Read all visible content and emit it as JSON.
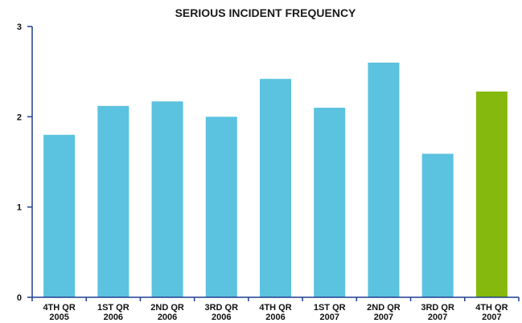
{
  "chart_data": {
    "type": "bar",
    "title": "SERIOUS INCIDENT FREQUENCY",
    "xlabel": "",
    "ylabel": "",
    "ylim": [
      0,
      3
    ],
    "yticks": [
      "0",
      "1",
      "2",
      "3"
    ],
    "grid": false,
    "legend": "none",
    "categories": [
      [
        "4TH QR",
        "2005"
      ],
      [
        "1ST QR",
        "2006"
      ],
      [
        "2ND QR",
        "2006"
      ],
      [
        "3RD QR",
        "2006"
      ],
      [
        "4TH QR",
        "2006"
      ],
      [
        "1ST QR",
        "2007"
      ],
      [
        "2ND QR",
        "2007"
      ],
      [
        "3RD QR",
        "2007"
      ],
      [
        "4TH QR",
        "2007"
      ]
    ],
    "values": [
      1.8,
      2.12,
      2.17,
      2.0,
      2.42,
      2.1,
      2.6,
      1.59,
      2.28
    ],
    "colors": {
      "bar": "#5bc2df",
      "highlight": "#85b90d",
      "axis": "#1f3f8f"
    },
    "highlight_index": 8
  }
}
